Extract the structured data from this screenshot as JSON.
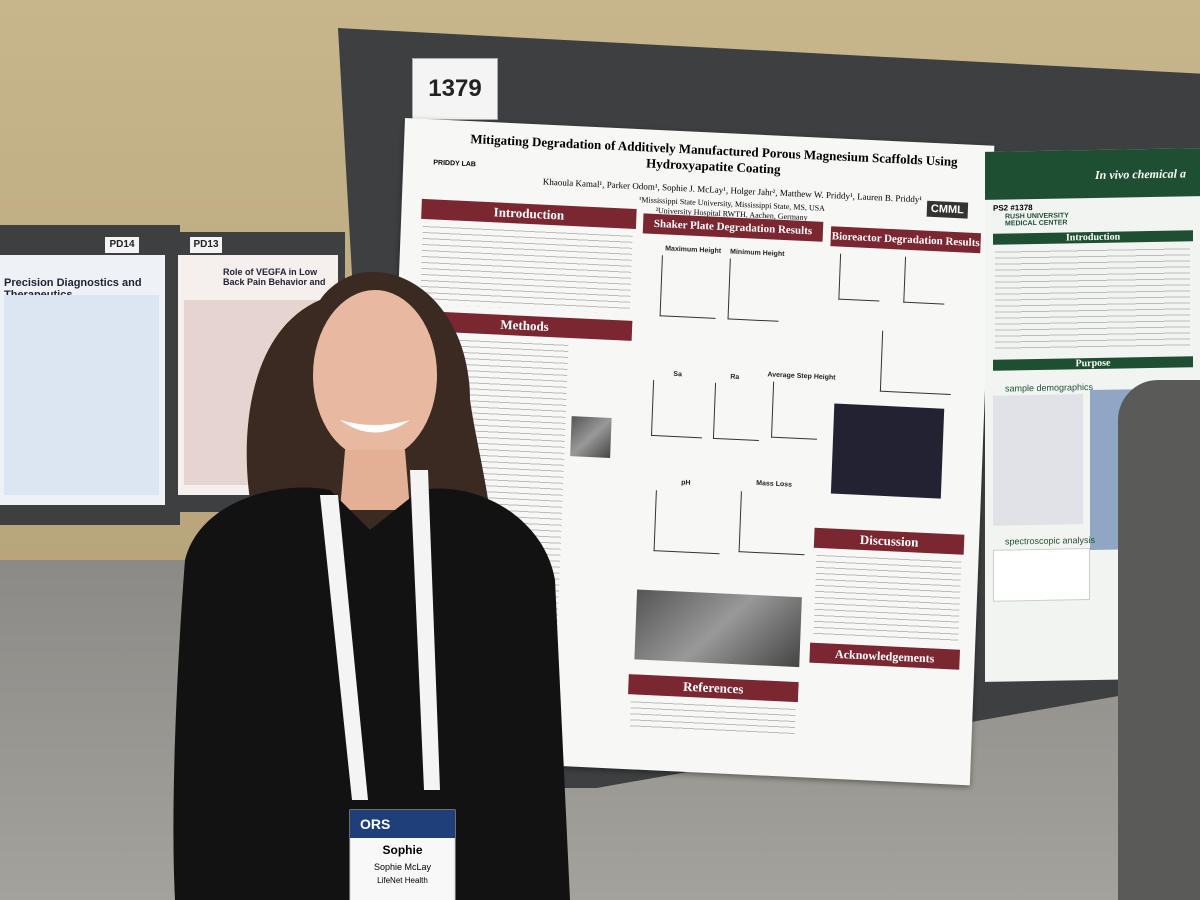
{
  "booth_number": "1379",
  "side_posters": [
    {
      "number": "PD14",
      "title": "Precision Diagnostics and Therapeutics"
    },
    {
      "number": "PD13",
      "title": "Role of VEGFA in Low Back Pain Behavior and"
    }
  ],
  "poster": {
    "title": "Mitigating Degradation of Additively Manufactured Porous Magnesium Scaffolds Using Hydroxyapatite Coating",
    "lab": "PRIDDY LAB",
    "authors": "Khaoula Kamal¹, Parker Odom¹, Sophie J. McLay¹, Holger Jahr², Matthew W. Priddy¹, Lauren B. Priddy¹",
    "affiliations": [
      "¹Mississippi State University, Mississippi State, MS, USA",
      "²University Hospital RWTH, Aachen, Germany"
    ],
    "logo": "CMML",
    "sections": [
      "Introduction",
      "Methods",
      "Shaker Plate Degradation Results",
      "Bioreactor Degradation Results",
      "Discussion",
      "Acknowledgements",
      "References"
    ],
    "chart_titles": [
      "Maximum Height",
      "Minimum Height",
      "Sa",
      "Ra",
      "Average Step Height",
      "pH",
      "Mass Loss"
    ]
  },
  "right_poster": {
    "id": "PS2 #1378",
    "title": "In vivo chemical a",
    "institution": "RUSH UNIVERSITY MEDICAL CENTER",
    "sections": [
      "Introduction",
      "Purpose",
      "sample demographics",
      "spectroscopic analysis"
    ]
  },
  "badge": {
    "org": "ORS",
    "name": "Sophie",
    "full_name": "Sophie McLay",
    "company": "LifeNet Health"
  }
}
